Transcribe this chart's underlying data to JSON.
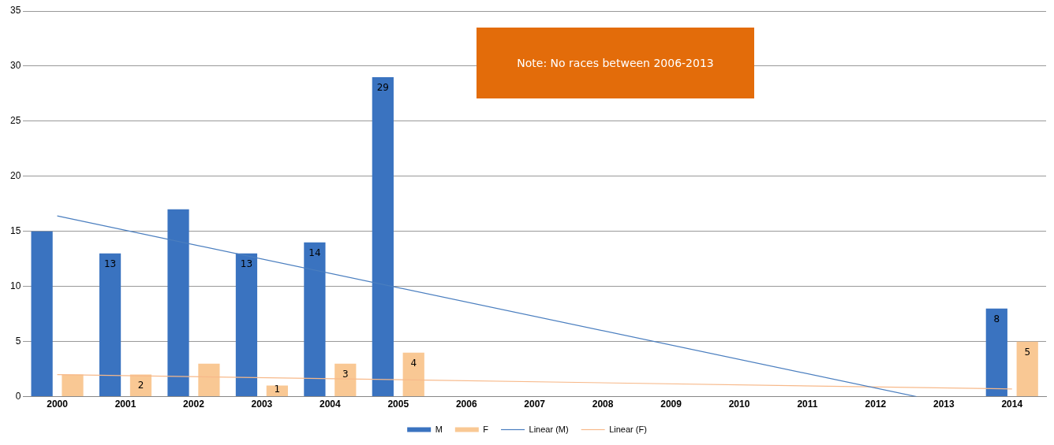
{
  "chart_data": {
    "type": "bar",
    "x": [
      2000,
      2001,
      2002,
      2003,
      2004,
      2005,
      2006,
      2007,
      2008,
      2009,
      2010,
      2011,
      2012,
      2013,
      2014
    ],
    "xlim": [
      1999.5,
      2014.5
    ],
    "xticks": [
      2000,
      2001,
      2002,
      2003,
      2004,
      2005,
      2006,
      2007,
      2008,
      2009,
      2010,
      2011,
      2012,
      2013,
      2014
    ],
    "ylim": [
      0,
      35
    ],
    "yticks": [
      0,
      5,
      10,
      15,
      20,
      25,
      30,
      35
    ],
    "series": [
      {
        "name": "M",
        "color": "#3a73c0",
        "values": [
          15,
          13,
          17,
          13,
          14,
          29,
          null,
          null,
          null,
          null,
          null,
          null,
          null,
          null,
          8
        ],
        "value_labels": [
          null,
          "13",
          null,
          "13",
          "14",
          "29",
          null,
          null,
          null,
          null,
          null,
          null,
          null,
          null,
          "8"
        ]
      },
      {
        "name": "F",
        "color": "#f9c894",
        "values": [
          2,
          2,
          3,
          1,
          3,
          4,
          null,
          null,
          null,
          null,
          null,
          null,
          null,
          null,
          5
        ],
        "value_labels": [
          null,
          "2",
          null,
          "1",
          "3",
          "4",
          null,
          null,
          null,
          null,
          null,
          null,
          null,
          null,
          "5"
        ]
      },
      {
        "name": "Linear (M)",
        "type": "line",
        "color": "#4a7ebf",
        "x": [
          2000,
          2012.6
        ],
        "values": [
          16.4,
          0
        ]
      },
      {
        "name": "Linear (F)",
        "type": "line",
        "color": "#f7b98a",
        "x": [
          2000,
          2014
        ],
        "values": [
          2.0,
          0.7
        ]
      }
    ],
    "annotations": [
      "Note: No races between 2006-2013"
    ],
    "grid": "y",
    "legend": "bottom",
    "marker": "none"
  }
}
